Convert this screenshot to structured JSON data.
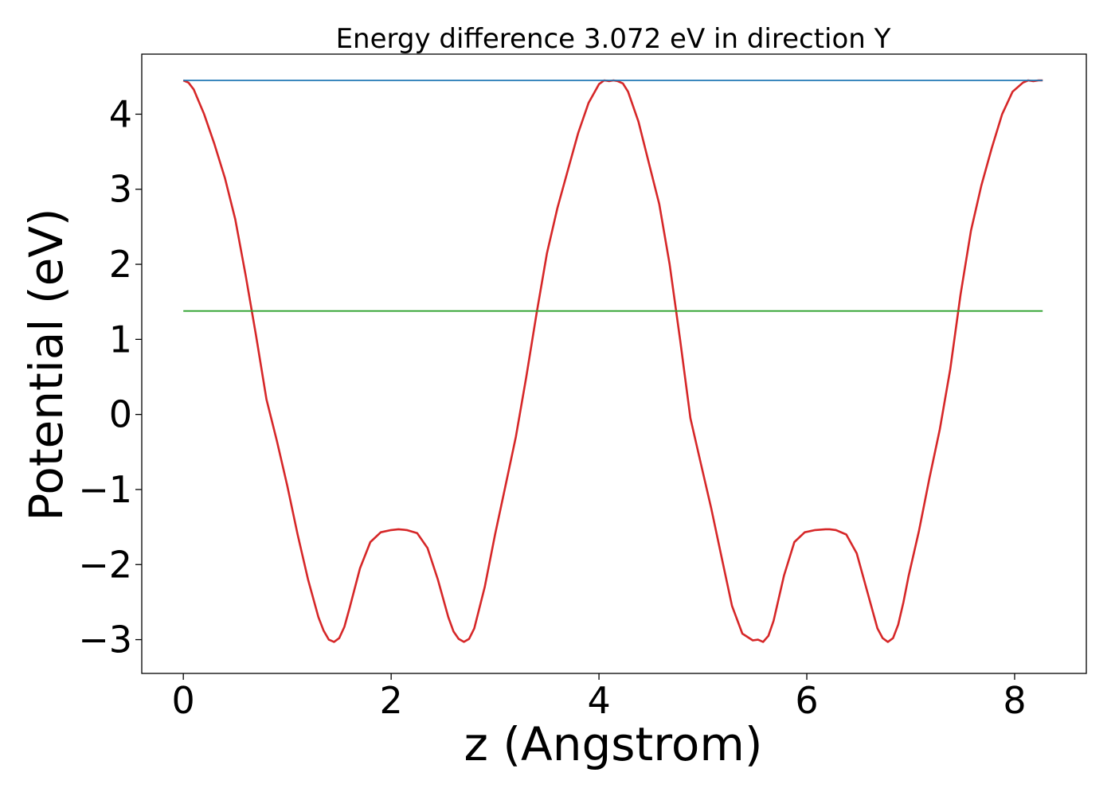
{
  "chart_data": {
    "type": "line",
    "title": "Energy difference 3.072 eV in direction Y",
    "xlabel": "z (Angstrom)",
    "ylabel": "Potential (eV)",
    "xlim": [
      -0.4,
      8.69
    ],
    "ylim": [
      -3.45,
      4.8
    ],
    "xticks": [
      0,
      2,
      4,
      6,
      8
    ],
    "yticks": [
      -3,
      -2,
      -1,
      0,
      1,
      2,
      3,
      4
    ],
    "xtick_labels": [
      "0",
      "2",
      "4",
      "6",
      "8"
    ],
    "ytick_labels": [
      "−3",
      "−2",
      "−1",
      "0",
      "1",
      "2",
      "3",
      "4"
    ],
    "grid": false,
    "legend": "none",
    "series": [
      {
        "color": "#d62728",
        "x": [
          0.0,
          0.05,
          0.1,
          0.2,
          0.3,
          0.4,
          0.5,
          0.6,
          0.7,
          0.8,
          0.9,
          1.0,
          1.1,
          1.2,
          1.3,
          1.35,
          1.4,
          1.45,
          1.5,
          1.55,
          1.6,
          1.7,
          1.8,
          1.9,
          2.0,
          2.07,
          2.15,
          2.25,
          2.35,
          2.45,
          2.55,
          2.6,
          2.65,
          2.7,
          2.75,
          2.8,
          2.9,
          3.0,
          3.1,
          3.2,
          3.3,
          3.4,
          3.5,
          3.6,
          3.7,
          3.8,
          3.9,
          4.0,
          4.05,
          4.1,
          4.14,
          4.18,
          4.23,
          4.28,
          4.38,
          4.48,
          4.58,
          4.68,
          4.78,
          4.88,
          4.98,
          5.08,
          5.18,
          5.28,
          5.38,
          5.48,
          5.53,
          5.58,
          5.63,
          5.68,
          5.73,
          5.78,
          5.88,
          5.98,
          6.08,
          6.18,
          6.22,
          6.28,
          6.38,
          6.48,
          6.58,
          6.68,
          6.73,
          6.78,
          6.83,
          6.88,
          6.93,
          6.98,
          7.08,
          7.18,
          7.28,
          7.38,
          7.48,
          7.58,
          7.68,
          7.78,
          7.88,
          7.98,
          8.08,
          8.13,
          8.18,
          8.23,
          8.27
        ],
        "y": [
          4.45,
          4.42,
          4.33,
          4.0,
          3.6,
          3.15,
          2.6,
          1.85,
          1.05,
          0.2,
          -0.35,
          -0.95,
          -1.6,
          -2.2,
          -2.7,
          -2.88,
          -3.0,
          -3.03,
          -2.98,
          -2.83,
          -2.58,
          -2.05,
          -1.7,
          -1.57,
          -1.54,
          -1.53,
          -1.54,
          -1.58,
          -1.78,
          -2.2,
          -2.7,
          -2.89,
          -2.99,
          -3.03,
          -2.99,
          -2.85,
          -2.3,
          -1.6,
          -0.95,
          -0.3,
          0.5,
          1.35,
          2.15,
          2.75,
          3.25,
          3.75,
          4.15,
          4.4,
          4.45,
          4.44,
          4.45,
          4.44,
          4.41,
          4.3,
          3.9,
          3.35,
          2.8,
          2.0,
          1.0,
          -0.05,
          -0.65,
          -1.25,
          -1.9,
          -2.55,
          -2.92,
          -3.01,
          -3.0,
          -3.03,
          -2.95,
          -2.75,
          -2.45,
          -2.15,
          -1.7,
          -1.57,
          -1.54,
          -1.53,
          -1.53,
          -1.54,
          -1.6,
          -1.85,
          -2.35,
          -2.85,
          -2.98,
          -3.03,
          -2.98,
          -2.8,
          -2.5,
          -2.15,
          -1.55,
          -0.85,
          -0.2,
          0.6,
          1.6,
          2.45,
          3.05,
          3.55,
          4.0,
          4.3,
          4.42,
          4.45,
          4.44,
          4.45,
          4.45
        ]
      },
      {
        "color": "#1f77b4",
        "x": [
          0.0,
          8.27
        ],
        "y": [
          4.45,
          4.45
        ]
      },
      {
        "color": "#2ca02c",
        "x": [
          0.0,
          8.27
        ],
        "y": [
          1.378,
          1.378
        ]
      }
    ]
  }
}
